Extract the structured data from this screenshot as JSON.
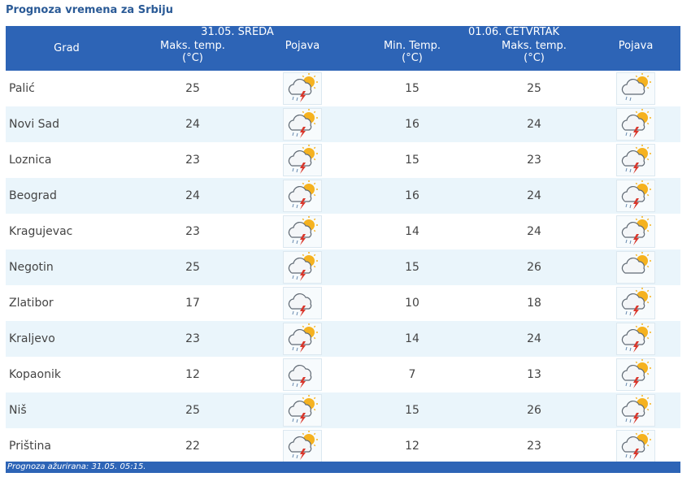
{
  "title": "Prognoza vremena za Srbiju",
  "header": {
    "city_col": "Grad",
    "day1": "31.05. SREDA",
    "day2": "01.06. ČETVRTAK",
    "day1_max": "Maks. temp.\n(°C)",
    "day1_wx": "Pojava",
    "day2_min": "Min. Temp.\n(°C)",
    "day2_max": "Maks. temp.\n(°C)",
    "day2_wx": "Pojava"
  },
  "rows": [
    {
      "city": "Palić",
      "d1_max": "25",
      "d1_icon": "sun-cloud-storm-icon",
      "d2_min": "15",
      "d2_max": "25",
      "d2_icon": "sun-cloud-rain-icon"
    },
    {
      "city": "Novi Sad",
      "d1_max": "24",
      "d1_icon": "sun-cloud-storm-icon",
      "d2_min": "16",
      "d2_max": "24",
      "d2_icon": "sun-cloud-storm-icon"
    },
    {
      "city": "Loznica",
      "d1_max": "23",
      "d1_icon": "sun-cloud-storm-icon",
      "d2_min": "15",
      "d2_max": "23",
      "d2_icon": "sun-cloud-storm-icon"
    },
    {
      "city": "Beograd",
      "d1_max": "24",
      "d1_icon": "sun-cloud-storm-icon",
      "d2_min": "16",
      "d2_max": "24",
      "d2_icon": "sun-cloud-storm-icon"
    },
    {
      "city": "Kragujevac",
      "d1_max": "23",
      "d1_icon": "sun-cloud-storm-icon",
      "d2_min": "14",
      "d2_max": "24",
      "d2_icon": "sun-cloud-storm-icon"
    },
    {
      "city": "Negotin",
      "d1_max": "25",
      "d1_icon": "sun-cloud-storm-icon",
      "d2_min": "15",
      "d2_max": "26",
      "d2_icon": "sun-cloud-icon"
    },
    {
      "city": "Zlatibor",
      "d1_max": "17",
      "d1_icon": "cloud-storm-icon",
      "d2_min": "10",
      "d2_max": "18",
      "d2_icon": "sun-cloud-storm-icon"
    },
    {
      "city": "Kraljevo",
      "d1_max": "23",
      "d1_icon": "sun-cloud-storm-icon",
      "d2_min": "14",
      "d2_max": "24",
      "d2_icon": "sun-cloud-storm-icon"
    },
    {
      "city": "Kopaonik",
      "d1_max": "12",
      "d1_icon": "cloud-storm-icon",
      "d2_min": "7",
      "d2_max": "13",
      "d2_icon": "sun-cloud-storm-icon"
    },
    {
      "city": "Niš",
      "d1_max": "25",
      "d1_icon": "sun-cloud-storm-icon",
      "d2_min": "15",
      "d2_max": "26",
      "d2_icon": "sun-cloud-storm-icon"
    },
    {
      "city": "Priština",
      "d1_max": "22",
      "d1_icon": "sun-cloud-storm-icon",
      "d2_min": "12",
      "d2_max": "23",
      "d2_icon": "sun-cloud-storm-icon"
    }
  ],
  "footer": {
    "label": "Prognoza ažurirana:",
    "timestamp": "31.05. 05:15."
  },
  "colors": {
    "header_bg": "#2d64b6",
    "title": "#2a5a96",
    "row_alt": "#eaf5fb",
    "sun": "#f5b21f",
    "lightning": "#d9362b"
  }
}
